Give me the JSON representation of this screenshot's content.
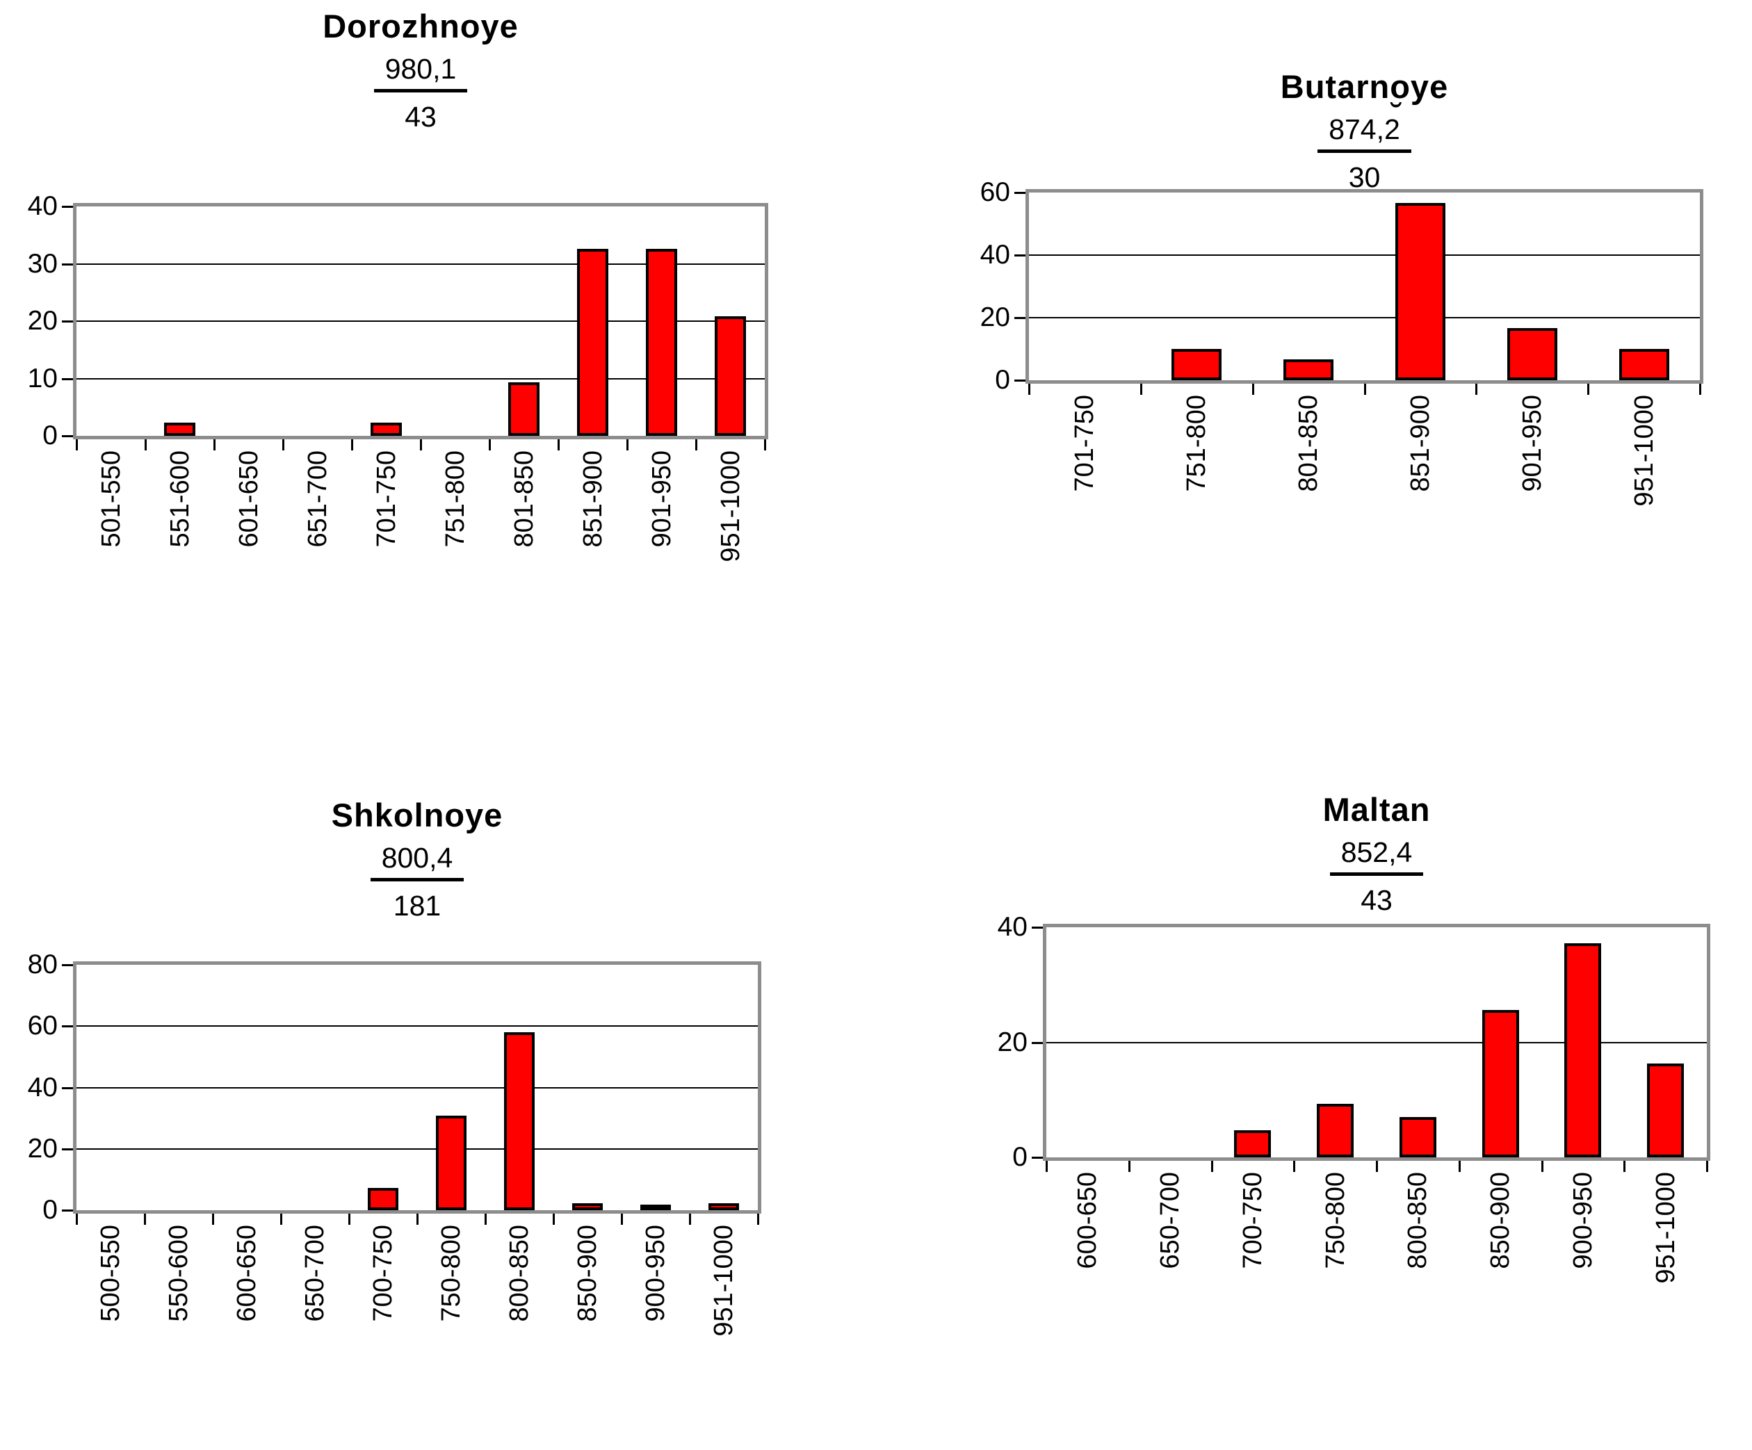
{
  "page": {
    "background_color": "#ffffff"
  },
  "chart_data": [
    {
      "type": "bar",
      "title": "Dorozhnoye",
      "mean_label": "980,1",
      "count_label": "43",
      "categories": [
        "501-550",
        "551-600",
        "601-650",
        "651-700",
        "701-750",
        "751-800",
        "801-850",
        "851-900",
        "901-950",
        "951-1000"
      ],
      "values": [
        0,
        2.3,
        0,
        0,
        2.3,
        0,
        9.3,
        32.6,
        32.6,
        20.9
      ],
      "ylim": [
        0,
        40
      ],
      "yticks": [
        0,
        10,
        20,
        30,
        40
      ],
      "xlabel": "",
      "ylabel": "",
      "grid": true,
      "legend": "none",
      "bar_color": "#ff0000",
      "bar_border_color": "#000000"
    },
    {
      "type": "bar",
      "title": "Butarnoye",
      "title_mark": "˘",
      "mean_label": "874,2",
      "count_label": "30",
      "categories": [
        "701-750",
        "751-800",
        "801-850",
        "851-900",
        "901-950",
        "951-1000"
      ],
      "values": [
        0,
        10,
        6.7,
        56.7,
        16.7,
        10
      ],
      "ylim": [
        0,
        60
      ],
      "yticks": [
        0,
        20,
        40,
        60
      ],
      "xlabel": "",
      "ylabel": "",
      "grid": true,
      "legend": "none",
      "bar_color": "#ff0000",
      "bar_border_color": "#000000"
    },
    {
      "type": "bar",
      "title": "Shkolnoye",
      "mean_label": "800,4",
      "count_label": "181",
      "categories": [
        "500-550",
        "550-600",
        "600-650",
        "650-700",
        "700-750",
        "750-800",
        "800-850",
        "850-900",
        "900-950",
        "951-1000"
      ],
      "values": [
        0,
        0,
        0,
        0,
        7.2,
        30.9,
        58,
        2.2,
        1.1,
        2.2
      ],
      "ylim": [
        0,
        80
      ],
      "yticks": [
        0,
        20,
        40,
        60,
        80
      ],
      "xlabel": "",
      "ylabel": "",
      "grid": true,
      "legend": "none",
      "bar_color": "#ff0000",
      "bar_border_color": "#000000",
      "bar_color_overrides": {
        "8": "#000000"
      }
    },
    {
      "type": "bar",
      "title": "Maltan",
      "mean_label": "852,4",
      "count_label": "43",
      "categories": [
        "600-650",
        "650-700",
        "700-750",
        "750-800",
        "800-850",
        "850-900",
        "900-950",
        "951-1000"
      ],
      "values": [
        0,
        0,
        4.7,
        9.3,
        7,
        25.6,
        37.2,
        16.3
      ],
      "ylim": [
        0,
        40
      ],
      "yticks": [
        0,
        20,
        40
      ],
      "xlabel": "",
      "ylabel": "",
      "grid": true,
      "legend": "none",
      "bar_color": "#ff0000",
      "bar_border_color": "#000000"
    }
  ]
}
